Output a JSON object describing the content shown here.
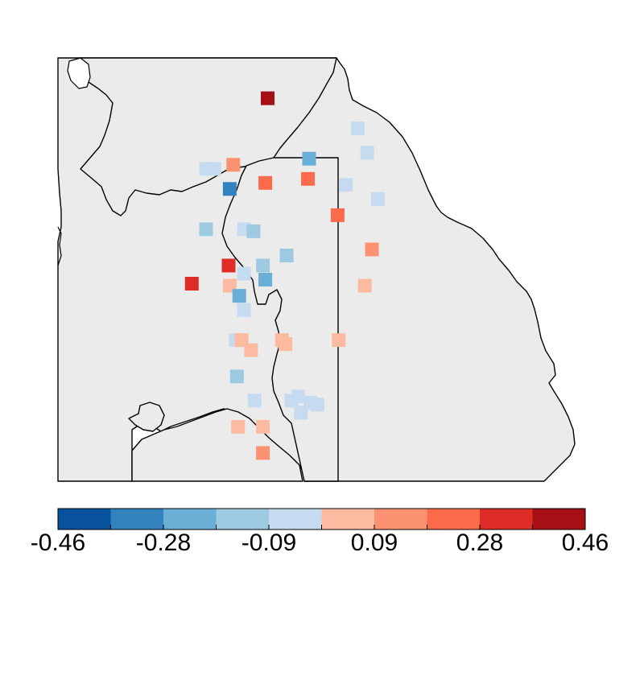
{
  "map": {
    "region": "Northern England",
    "land_color": "#ebebeb",
    "coast_color": "#000000",
    "sea_color": "#ffffff"
  },
  "stations": [
    {
      "lat": 55.2,
      "lon": -2.78,
      "value": 0.44
    },
    {
      "lat": 55.05,
      "lon": -2.02,
      "value": -0.05
    },
    {
      "lat": 54.9,
      "lon": -2.43,
      "value": -0.24
    },
    {
      "lat": 54.93,
      "lon": -1.94,
      "value": -0.05
    },
    {
      "lat": 54.85,
      "lon": -3.3,
      "value": -0.05
    },
    {
      "lat": 54.85,
      "lon": -3.23,
      "value": -0.05
    },
    {
      "lat": 54.87,
      "lon": -3.07,
      "value": 0.16
    },
    {
      "lat": 54.78,
      "lon": -2.8,
      "value": 0.22
    },
    {
      "lat": 54.8,
      "lon": -2.44,
      "value": 0.22
    },
    {
      "lat": 54.75,
      "lon": -3.1,
      "value": -0.36
    },
    {
      "lat": 54.77,
      "lon": -2.12,
      "value": -0.05
    },
    {
      "lat": 54.7,
      "lon": -1.85,
      "value": -0.05
    },
    {
      "lat": 54.62,
      "lon": -2.19,
      "value": 0.22
    },
    {
      "lat": 54.55,
      "lon": -3.3,
      "value": -0.15
    },
    {
      "lat": 54.55,
      "lon": -2.98,
      "value": -0.05
    },
    {
      "lat": 54.54,
      "lon": -2.9,
      "value": -0.15
    },
    {
      "lat": 54.45,
      "lon": -1.9,
      "value": 0.16
    },
    {
      "lat": 54.42,
      "lon": -2.62,
      "value": -0.15
    },
    {
      "lat": 54.37,
      "lon": -3.11,
      "value": 0.33
    },
    {
      "lat": 54.37,
      "lon": -2.82,
      "value": -0.15
    },
    {
      "lat": 54.33,
      "lon": -2.98,
      "value": -0.05
    },
    {
      "lat": 54.3,
      "lon": -2.8,
      "value": -0.24
    },
    {
      "lat": 54.28,
      "lon": -3.42,
      "value": 0.33
    },
    {
      "lat": 54.27,
      "lon": -3.1,
      "value": 0.07
    },
    {
      "lat": 54.27,
      "lon": -1.96,
      "value": 0.07
    },
    {
      "lat": 54.22,
      "lon": -3.02,
      "value": -0.24
    },
    {
      "lat": 54.15,
      "lon": -2.98,
      "value": -0.05
    },
    {
      "lat": 54.0,
      "lon": -3.05,
      "value": -0.05
    },
    {
      "lat": 54.0,
      "lon": -3.0,
      "value": 0.07
    },
    {
      "lat": 54.0,
      "lon": -2.66,
      "value": 0.07
    },
    {
      "lat": 54.0,
      "lon": -2.18,
      "value": 0.07
    },
    {
      "lat": 53.98,
      "lon": -2.63,
      "value": 0.07
    },
    {
      "lat": 53.95,
      "lon": -2.92,
      "value": 0.07
    },
    {
      "lat": 53.82,
      "lon": -3.04,
      "value": -0.15
    },
    {
      "lat": 53.72,
      "lon": -2.52,
      "value": -0.05
    },
    {
      "lat": 53.7,
      "lon": -2.89,
      "value": -0.05
    },
    {
      "lat": 53.7,
      "lon": -2.58,
      "value": -0.05
    },
    {
      "lat": 53.69,
      "lon": -2.42,
      "value": -0.05
    },
    {
      "lat": 53.68,
      "lon": -2.36,
      "value": -0.05
    },
    {
      "lat": 53.64,
      "lon": -2.5,
      "value": -0.05
    },
    {
      "lat": 53.57,
      "lon": -3.03,
      "value": 0.07
    },
    {
      "lat": 53.57,
      "lon": -2.82,
      "value": 0.07
    },
    {
      "lat": 53.44,
      "lon": -2.82,
      "value": 0.16
    }
  ],
  "legend": {
    "colors": [
      "#08519c",
      "#3182bd",
      "#6baed6",
      "#9ecae1",
      "#c6dbef",
      "#fcbba1",
      "#fc9272",
      "#fb6a4a",
      "#de2d26",
      "#a50f15"
    ],
    "breaks": [
      -0.46,
      -0.37,
      -0.28,
      -0.18,
      -0.09,
      0.0,
      0.09,
      0.18,
      0.28,
      0.37,
      0.46
    ],
    "tick_labels": [
      "-0.46",
      "-0.28",
      "-0.09",
      "0.09",
      "0.28",
      "0.46"
    ]
  }
}
